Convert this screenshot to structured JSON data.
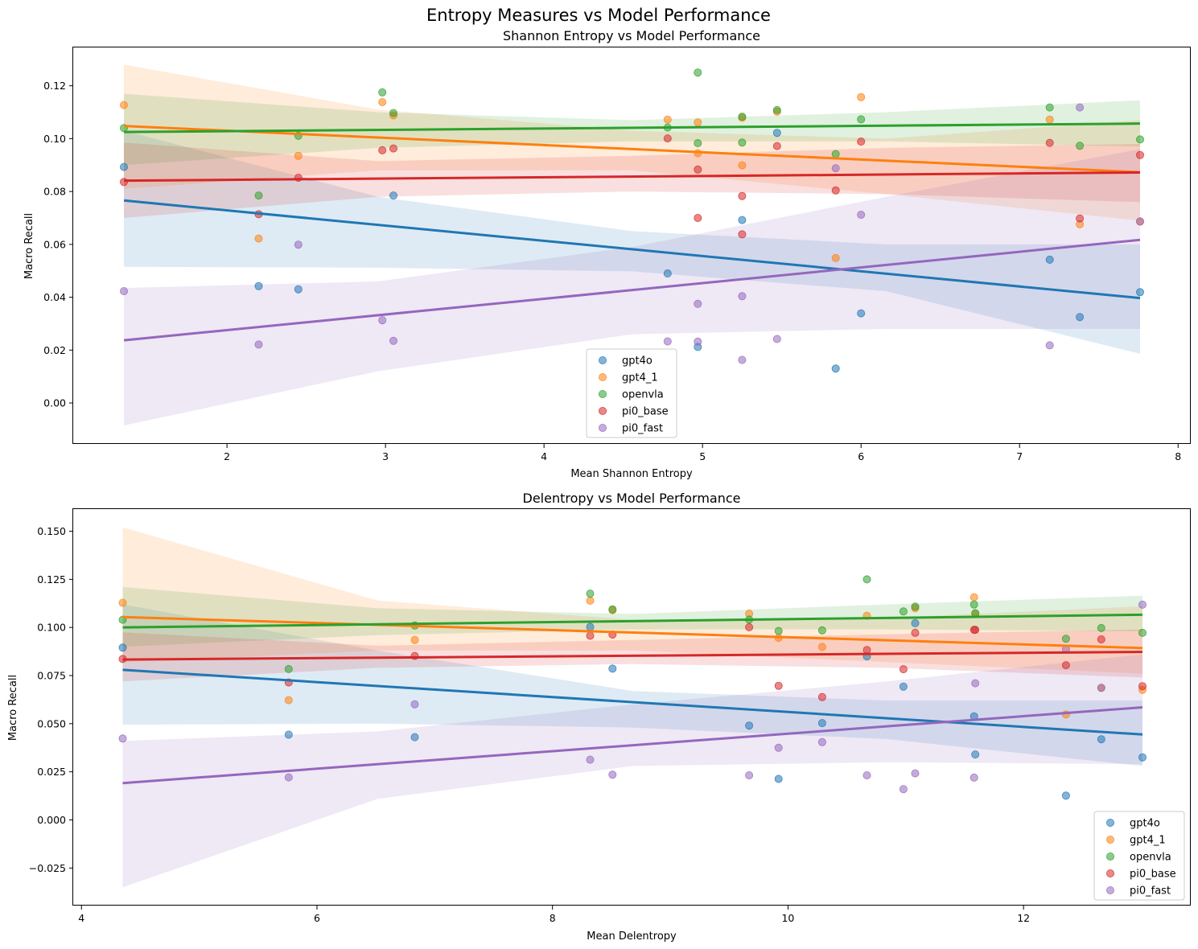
{
  "suptitle": "Entropy Measures vs Model Performance",
  "colors": {
    "gpt4o": "#1f77b4",
    "gpt4_1": "#ff7f0e",
    "openvla": "#2ca02c",
    "pi0_base": "#d62728",
    "pi0_fast": "#9467bd"
  },
  "chart_data": [
    {
      "type": "scatter",
      "title": "Shannon Entropy vs Model Performance",
      "xlabel": "Mean Shannon Entropy",
      "ylabel": "Macro Recall",
      "xlim": [
        1.03,
        8.08
      ],
      "ylim": [
        -0.0155,
        0.1345
      ],
      "xticks": [
        2,
        3,
        4,
        5,
        6,
        7,
        8
      ],
      "yticks": [
        0.0,
        0.02,
        0.04,
        0.06,
        0.08,
        0.1,
        0.12
      ],
      "ytick_labels": [
        "0.00",
        "0.02",
        "0.04",
        "0.06",
        "0.08",
        "0.10",
        "0.12"
      ],
      "legend": "lower-center",
      "series": [
        {
          "name": "gpt4o",
          "x": [
            1.35,
            2.2,
            2.45,
            3.05,
            4.78,
            4.97,
            5.25,
            5.47,
            5.84,
            6.0,
            7.19,
            7.38,
            7.76
          ],
          "y": [
            0.0893,
            0.0442,
            0.043,
            0.0785,
            0.049,
            0.0212,
            0.0692,
            0.1022,
            0.013,
            0.0339,
            0.0542,
            0.0325,
            0.0419
          ],
          "fit": [
            0.0766,
            0.0397
          ],
          "band_low": [
            0.0515,
            0.0512,
            0.0498,
            0.0423,
            0.0186
          ],
          "band_high": [
            0.103,
            0.078,
            0.065,
            0.06,
            0.06
          ]
        },
        {
          "name": "gpt4_1",
          "x": [
            1.35,
            2.2,
            2.45,
            2.98,
            3.05,
            4.78,
            4.97,
            4.97,
            5.25,
            5.25,
            5.47,
            5.84,
            6.0,
            7.19,
            7.38,
            7.76
          ],
          "y": [
            0.1127,
            0.0622,
            0.0935,
            0.1138,
            0.1088,
            0.1072,
            0.1061,
            0.0945,
            0.1079,
            0.0899,
            0.1102,
            0.0548,
            0.1157,
            0.1072,
            0.0676,
            0.0686
          ],
          "fit": [
            0.1048,
            0.0873
          ],
          "band_low": [
            0.081,
            0.088,
            0.088,
            0.079,
            0.069
          ],
          "band_high": [
            0.128,
            0.111,
            0.103,
            0.1,
            0.107
          ]
        },
        {
          "name": "openvla",
          "x": [
            1.35,
            2.2,
            2.45,
            2.98,
            3.05,
            4.78,
            4.97,
            4.97,
            5.25,
            5.25,
            5.47,
            5.84,
            6.0,
            7.19,
            7.38,
            7.76
          ],
          "y": [
            0.104,
            0.0785,
            0.1011,
            0.1175,
            0.1097,
            0.1042,
            0.125,
            0.0983,
            0.1083,
            0.0985,
            0.1108,
            0.0942,
            0.1073,
            0.1118,
            0.0973,
            0.0997
          ],
          "fit": [
            0.1025,
            0.1057
          ],
          "band_low": [
            0.09,
            0.0965,
            0.099,
            0.099,
            0.097
          ],
          "band_high": [
            0.117,
            0.11,
            0.107,
            0.11,
            0.1145
          ]
        },
        {
          "name": "pi0_base",
          "x": [
            1.35,
            2.2,
            2.45,
            2.98,
            3.05,
            4.78,
            4.97,
            4.97,
            5.25,
            5.25,
            5.47,
            5.84,
            6.0,
            7.19,
            7.38,
            7.76
          ],
          "y": [
            0.0836,
            0.0714,
            0.0852,
            0.0956,
            0.0963,
            0.1001,
            0.0883,
            0.07,
            0.0783,
            0.0638,
            0.0972,
            0.0804,
            0.0989,
            0.0984,
            0.0698,
            0.0938
          ],
          "fit": [
            0.0841,
            0.0872
          ],
          "band_low": [
            0.07,
            0.078,
            0.08,
            0.079,
            0.076
          ],
          "band_high": [
            0.0985,
            0.0915,
            0.0935,
            0.0965,
            0.098
          ]
        },
        {
          "name": "pi0_fast",
          "x": [
            1.35,
            2.2,
            2.45,
            2.98,
            3.05,
            4.78,
            4.97,
            4.97,
            5.25,
            5.25,
            5.47,
            5.84,
            6.0,
            7.19,
            7.38,
            7.76
          ],
          "y": [
            0.0423,
            0.0221,
            0.0599,
            0.0313,
            0.0235,
            0.0233,
            0.0375,
            0.0232,
            0.0404,
            0.0163,
            0.0242,
            0.0888,
            0.0712,
            0.0218,
            0.1118,
            0.0687
          ],
          "fit": [
            0.0237,
            0.0617
          ],
          "band_low": [
            -0.0085,
            0.012,
            0.026,
            0.028,
            0.028
          ],
          "band_high": [
            0.0435,
            0.046,
            0.059,
            0.078,
            0.096
          ]
        }
      ]
    },
    {
      "type": "scatter",
      "title": "Delentropy vs Model Performance",
      "xlabel": "Mean Delentropy",
      "ylabel": "Macro Recall",
      "xlim": [
        3.93,
        13.42
      ],
      "ylim": [
        -0.0445,
        0.1615
      ],
      "xticks": [
        4,
        6,
        8,
        10,
        12
      ],
      "yticks": [
        -0.025,
        0.0,
        0.025,
        0.05,
        0.075,
        0.1,
        0.125,
        0.15
      ],
      "ytick_labels": [
        "−0.025",
        "0.000",
        "0.025",
        "0.050",
        "0.075",
        "0.100",
        "0.125",
        "0.150"
      ],
      "legend": "lower-right",
      "series": [
        {
          "name": "gpt4o",
          "x": [
            4.35,
            5.76,
            6.83,
            8.32,
            8.51,
            9.67,
            9.92,
            10.29,
            10.67,
            10.98,
            11.08,
            11.58,
            11.59,
            12.36,
            12.66,
            13.01
          ],
          "y": [
            0.0895,
            0.0443,
            0.043,
            0.1003,
            0.0786,
            0.049,
            0.0213,
            0.0503,
            0.085,
            0.0693,
            0.1022,
            0.0538,
            0.034,
            0.0126,
            0.0419,
            0.0325
          ],
          "fit": [
            0.078,
            0.0444
          ],
          "band_low": [
            0.0495,
            0.05,
            0.048,
            0.042,
            0.028
          ],
          "band_high": [
            0.112,
            0.088,
            0.067,
            0.062,
            0.062
          ]
        },
        {
          "name": "gpt4_1",
          "x": [
            4.35,
            5.76,
            6.83,
            8.32,
            8.51,
            9.67,
            9.92,
            10.29,
            10.67,
            11.08,
            11.58,
            11.59,
            12.36,
            12.66,
            13.01
          ],
          "y": [
            0.1128,
            0.0622,
            0.0935,
            0.1139,
            0.109,
            0.1072,
            0.0946,
            0.0899,
            0.1061,
            0.11,
            0.1157,
            0.1072,
            0.0548,
            0.0686,
            0.0676
          ],
          "fit": [
            0.1054,
            0.0893
          ],
          "band_low": [
            0.082,
            0.088,
            0.088,
            0.082,
            0.076
          ],
          "band_high": [
            0.152,
            0.114,
            0.104,
            0.105,
            0.111
          ]
        },
        {
          "name": "openvla",
          "x": [
            4.35,
            5.76,
            6.83,
            8.32,
            8.51,
            9.67,
            9.92,
            10.29,
            10.67,
            10.98,
            11.08,
            11.58,
            11.59,
            12.36,
            12.66,
            13.01
          ],
          "y": [
            0.104,
            0.0784,
            0.101,
            0.1176,
            0.1094,
            0.1041,
            0.0982,
            0.0985,
            0.125,
            0.1083,
            0.1108,
            0.1119,
            0.1074,
            0.0941,
            0.0997,
            0.0972
          ],
          "fit": [
            0.1,
            0.1066
          ],
          "band_low": [
            0.09,
            0.096,
            0.099,
            0.099,
            0.098
          ],
          "band_high": [
            0.121,
            0.11,
            0.107,
            0.112,
            0.1165
          ]
        },
        {
          "name": "pi0_base",
          "x": [
            4.35,
            5.76,
            6.83,
            8.32,
            8.51,
            9.67,
            9.92,
            10.29,
            10.67,
            10.98,
            11.08,
            11.58,
            11.59,
            12.36,
            12.66,
            13.01
          ],
          "y": [
            0.0836,
            0.0714,
            0.0852,
            0.0957,
            0.0963,
            0.1001,
            0.0697,
            0.0638,
            0.0883,
            0.0783,
            0.0972,
            0.0988,
            0.0988,
            0.0804,
            0.0938,
            0.0695
          ],
          "fit": [
            0.0833,
            0.0873
          ],
          "band_low": [
            0.072,
            0.079,
            0.081,
            0.079,
            0.074
          ],
          "band_high": [
            0.0975,
            0.0905,
            0.0935,
            0.0965,
            0.099
          ]
        },
        {
          "name": "pi0_fast",
          "x": [
            4.35,
            5.76,
            6.83,
            8.32,
            8.51,
            9.67,
            9.92,
            10.29,
            10.67,
            10.98,
            11.08,
            11.58,
            11.59,
            12.36,
            12.66,
            13.01
          ],
          "y": [
            0.0423,
            0.0221,
            0.0601,
            0.0313,
            0.0235,
            0.0232,
            0.0375,
            0.0404,
            0.0232,
            0.016,
            0.0242,
            0.022,
            0.071,
            0.0888,
            0.0686,
            0.1118
          ],
          "fit": [
            0.0191,
            0.0585
          ],
          "band_low": [
            -0.035,
            0.011,
            0.028,
            0.03,
            0.029
          ],
          "band_high": [
            0.041,
            0.046,
            0.06,
            0.072,
            0.086
          ]
        }
      ]
    }
  ]
}
